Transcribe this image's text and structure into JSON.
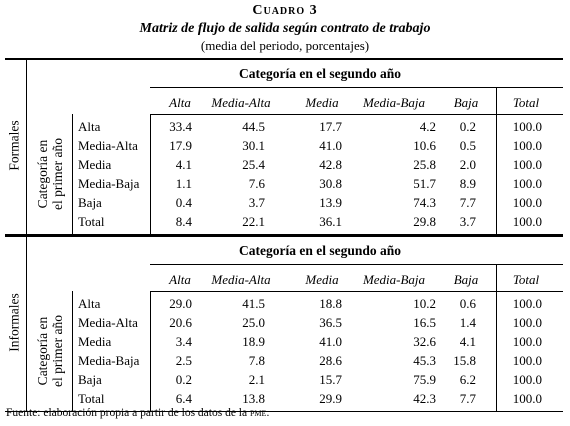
{
  "caption": {
    "label": "Cuadro 3",
    "title": "Matriz de flujo de salida según contrato de trabajo",
    "subtitle": "(media del periodo, porcentajes)"
  },
  "panels": [
    {
      "section_label": "Formales",
      "row_axis_label_1": "Categoría en",
      "row_axis_label_2": "el primer año",
      "column_group_header": "Categoría en el segundo año",
      "columns": [
        "Alta",
        "Media-Alta",
        "Media",
        "Media-Baja",
        "Baja",
        "Total"
      ],
      "rows": [
        {
          "label": "Alta",
          "values": [
            "33.4",
            "44.5",
            "17.7",
            "4.2",
            "0.2",
            "100.0"
          ]
        },
        {
          "label": "Media-Alta",
          "values": [
            "17.9",
            "30.1",
            "41.0",
            "10.6",
            "0.5",
            "100.0"
          ]
        },
        {
          "label": "Media",
          "values": [
            "4.1",
            "25.4",
            "42.8",
            "25.8",
            "2.0",
            "100.0"
          ]
        },
        {
          "label": "Media-Baja",
          "values": [
            "1.1",
            "7.6",
            "30.8",
            "51.7",
            "8.9",
            "100.0"
          ]
        },
        {
          "label": "Baja",
          "values": [
            "0.4",
            "3.7",
            "13.9",
            "74.3",
            "7.7",
            "100.0"
          ]
        },
        {
          "label": "Total",
          "values": [
            "8.4",
            "22.1",
            "36.1",
            "29.8",
            "3.7",
            "100.0"
          ]
        }
      ]
    },
    {
      "section_label": "Informales",
      "row_axis_label_1": "Categoría en",
      "row_axis_label_2": "el primer año",
      "column_group_header": "Categoría en el segundo año",
      "columns": [
        "Alta",
        "Media-Alta",
        "Media",
        "Media-Baja",
        "Baja",
        "Total"
      ],
      "rows": [
        {
          "label": "Alta",
          "values": [
            "29.0",
            "41.5",
            "18.8",
            "10.2",
            "0.6",
            "100.0"
          ]
        },
        {
          "label": "Media-Alta",
          "values": [
            "20.6",
            "25.0",
            "36.5",
            "16.5",
            "1.4",
            "100.0"
          ]
        },
        {
          "label": "Media",
          "values": [
            "3.4",
            "18.9",
            "41.0",
            "32.6",
            "4.1",
            "100.0"
          ]
        },
        {
          "label": "Media-Baja",
          "values": [
            "2.5",
            "7.8",
            "28.6",
            "45.3",
            "15.8",
            "100.0"
          ]
        },
        {
          "label": "Baja",
          "values": [
            "0.2",
            "2.1",
            "15.7",
            "75.9",
            "6.2",
            "100.0"
          ]
        },
        {
          "label": "Total",
          "values": [
            "6.4",
            "13.8",
            "29.9",
            "42.3",
            "7.7",
            "100.0"
          ]
        }
      ]
    }
  ],
  "source": {
    "prefix": "Fuente: elaboración propia a partir de los datos de la ",
    "acronym": "pme",
    "suffix": "."
  }
}
